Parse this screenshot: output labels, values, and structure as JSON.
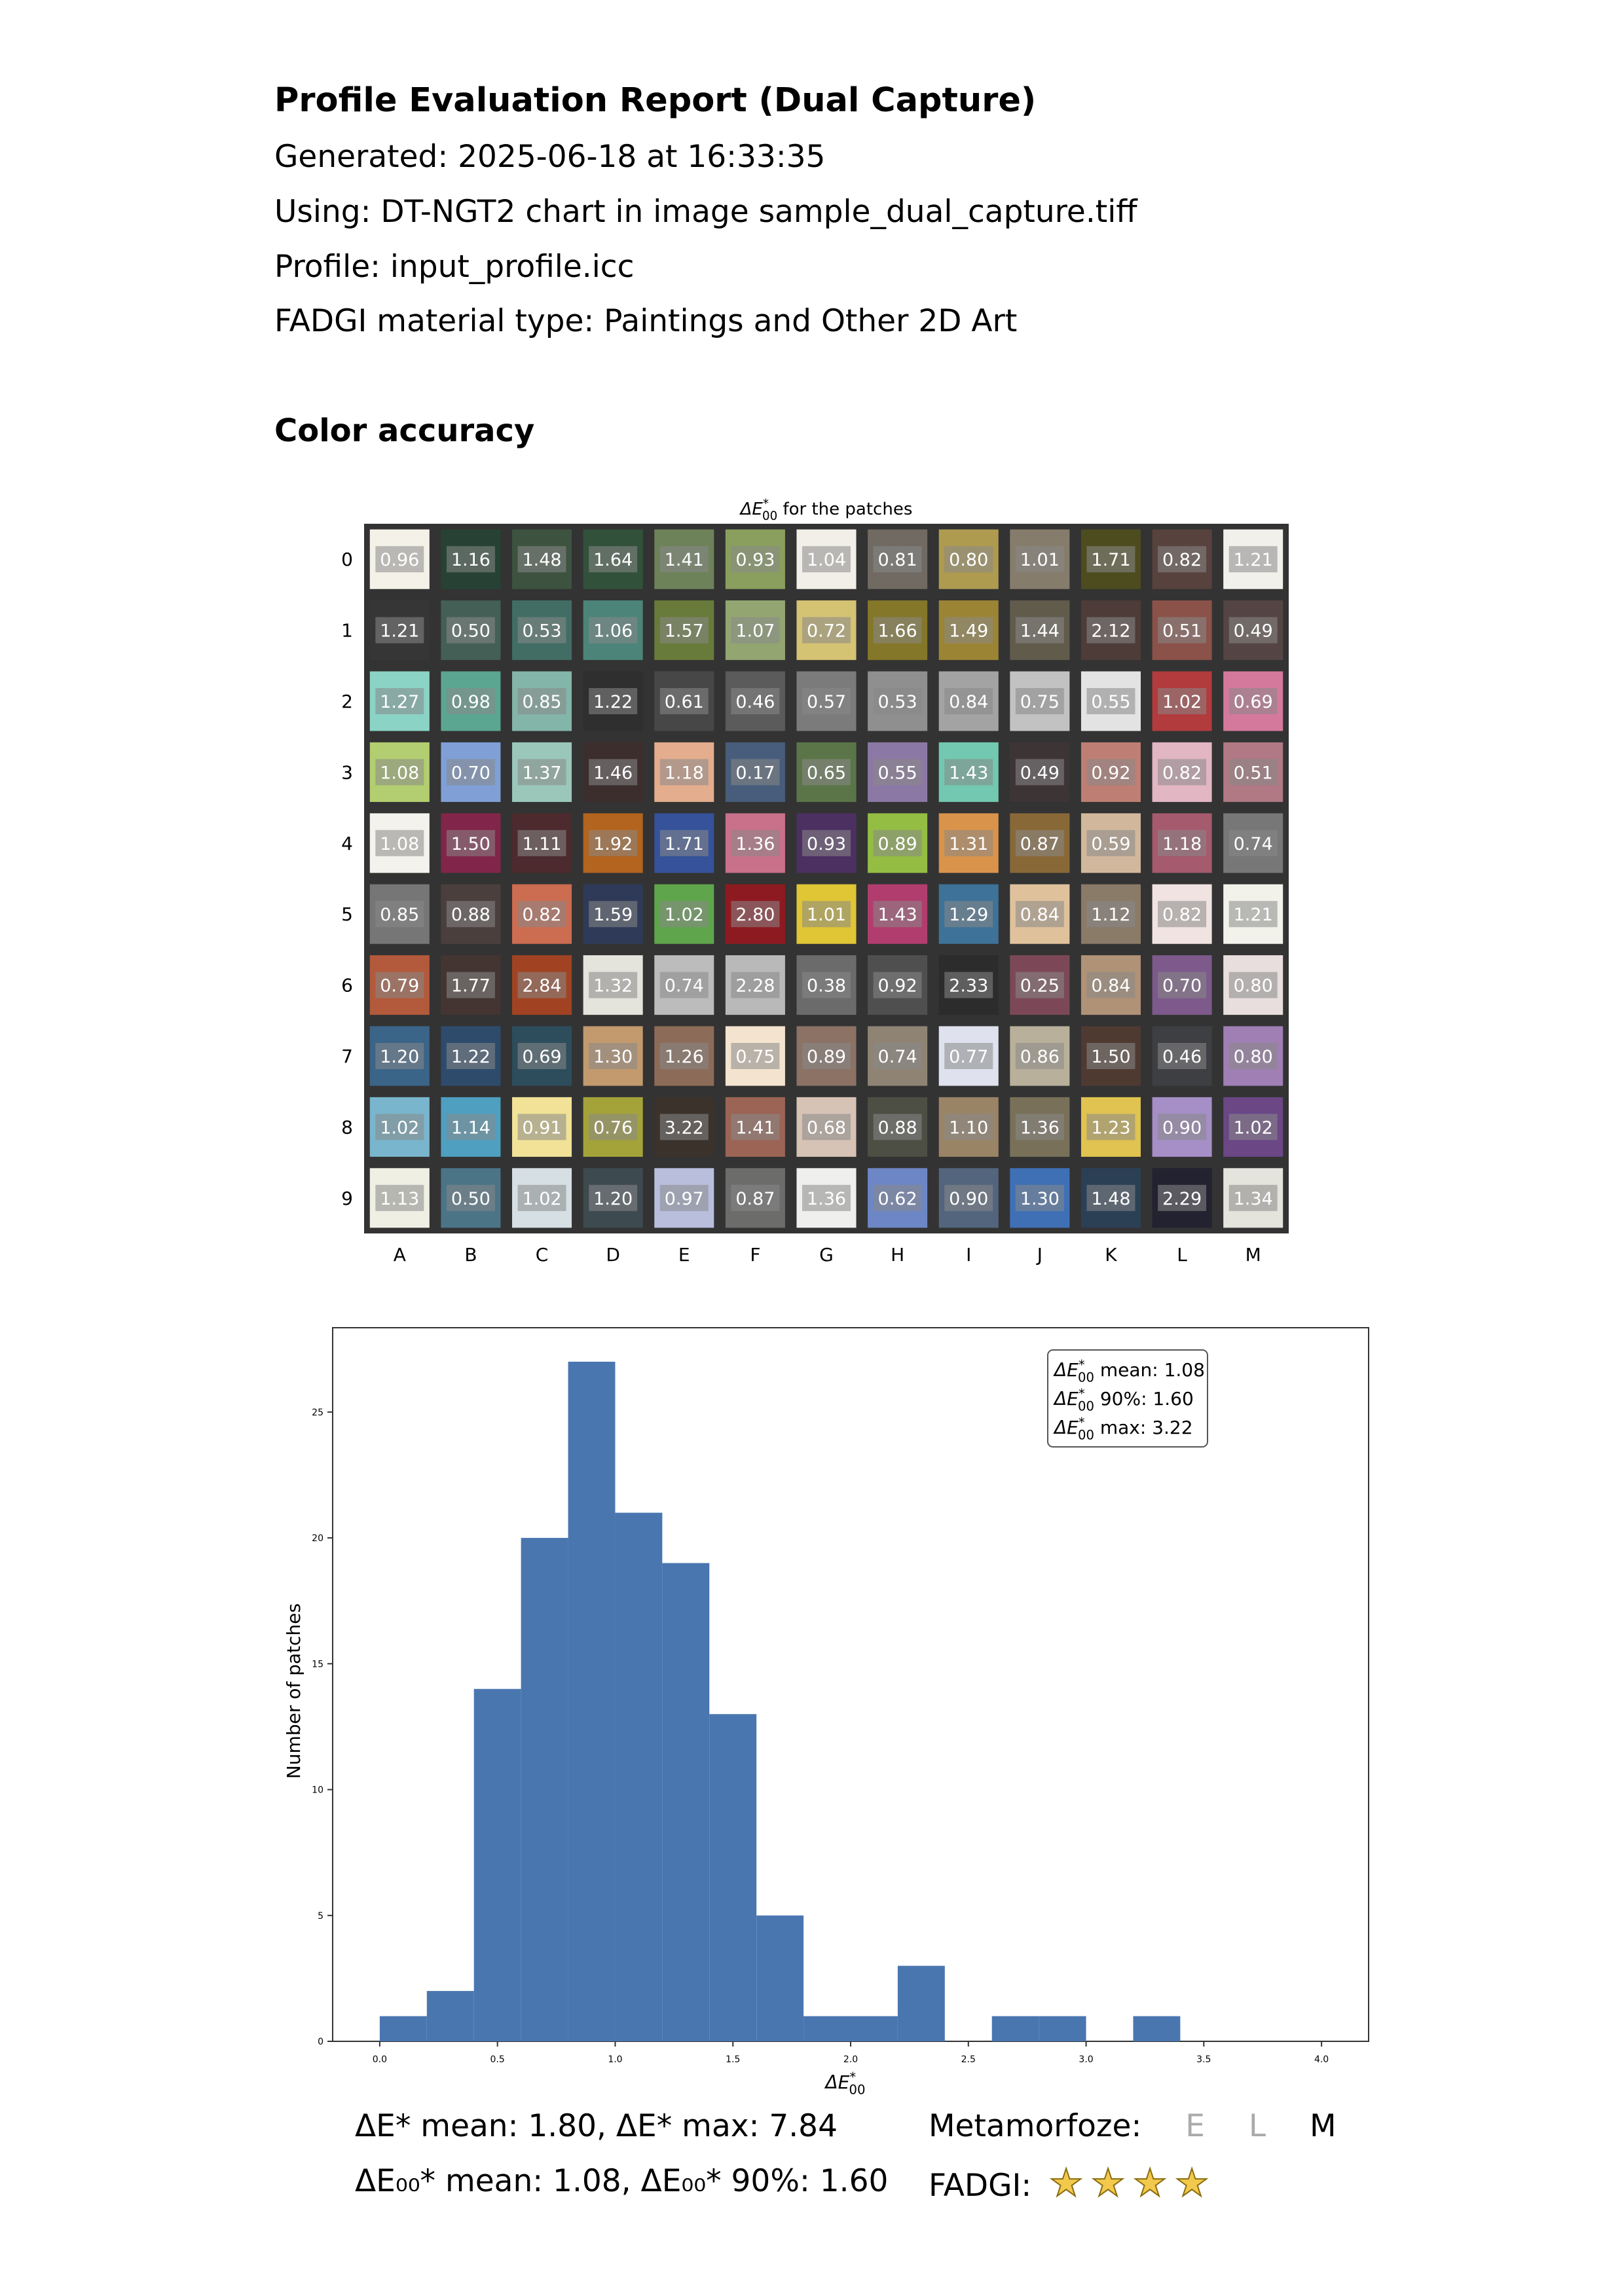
{
  "report": {
    "title": "Profile Evaluation Report (Dual Capture)",
    "generated": "Generated: 2025-06-18 at 16:33:35",
    "using": "Using: DT-NGT2 chart in image sample_dual_capture.tiff",
    "profile": "Profile: input_profile.icc",
    "material": "FADGI material type: Paintings and Other 2D Art",
    "section_color": "Color accuracy"
  },
  "chart_data": [
    {
      "type": "heatmap",
      "title_prefix": "ΔE",
      "title_sub": "00",
      "title_sup": "*",
      "title_suffix": " for the patches",
      "columns": [
        "A",
        "B",
        "C",
        "D",
        "E",
        "F",
        "G",
        "H",
        "I",
        "J",
        "K",
        "L",
        "M"
      ],
      "rows": [
        "0",
        "1",
        "2",
        "3",
        "4",
        "5",
        "6",
        "7",
        "8",
        "9"
      ],
      "values": [
        [
          0.96,
          1.16,
          1.48,
          1.64,
          1.41,
          0.93,
          1.04,
          0.81,
          0.8,
          1.01,
          1.71,
          0.82,
          1.21
        ],
        [
          1.21,
          0.5,
          0.53,
          1.06,
          1.57,
          1.07,
          0.72,
          1.66,
          1.49,
          1.44,
          2.12,
          0.51,
          0.49
        ],
        [
          1.27,
          0.98,
          0.85,
          1.22,
          0.61,
          0.46,
          0.57,
          0.53,
          0.84,
          0.75,
          0.55,
          1.02,
          0.69
        ],
        [
          1.08,
          0.7,
          1.37,
          1.46,
          1.18,
          0.17,
          0.65,
          0.55,
          1.43,
          0.49,
          0.92,
          0.82,
          0.51
        ],
        [
          1.08,
          1.5,
          1.11,
          1.92,
          1.71,
          1.36,
          0.93,
          0.89,
          1.31,
          0.87,
          0.59,
          1.18,
          0.74
        ],
        [
          0.85,
          0.88,
          0.82,
          1.59,
          1.02,
          2.8,
          1.01,
          1.43,
          1.29,
          0.84,
          1.12,
          0.82,
          1.21
        ],
        [
          0.79,
          1.77,
          2.84,
          1.32,
          0.74,
          2.28,
          0.38,
          0.92,
          2.33,
          0.25,
          0.84,
          0.7,
          0.8
        ],
        [
          1.2,
          1.22,
          0.69,
          1.3,
          1.26,
          0.75,
          0.89,
          0.74,
          0.77,
          0.86,
          1.5,
          0.46,
          0.8
        ],
        [
          1.02,
          1.14,
          0.91,
          0.76,
          3.22,
          1.41,
          0.68,
          0.88,
          1.1,
          1.36,
          1.23,
          0.9,
          1.02
        ],
        [
          1.13,
          0.5,
          1.02,
          1.2,
          0.97,
          0.87,
          1.36,
          0.62,
          0.9,
          1.3,
          1.48,
          2.29,
          1.34
        ]
      ],
      "patch_colors": [
        [
          "#f3f1e8",
          "#274234",
          "#3d5340",
          "#31513b",
          "#6e8259",
          "#8a9f5d",
          "#f1efe8",
          "#706a63",
          "#ae9b50",
          "#857c6b",
          "#4c4c1f",
          "#58423d",
          "#f1f0ea"
        ],
        [
          "#363636",
          "#445f56",
          "#416d64",
          "#4c8479",
          "#687b3a",
          "#93a672",
          "#d5c374",
          "#847729",
          "#9b8535",
          "#615b4c",
          "#4d3c38",
          "#8b5249",
          "#544544"
        ],
        [
          "#8bd3c5",
          "#5ba690",
          "#83b5a8",
          "#2f2f2f",
          "#474747",
          "#5b5b5b",
          "#7b7b7b",
          "#8f8f8f",
          "#a3a3a3",
          "#c2c2c2",
          "#e3e3e3",
          "#b23b3d",
          "#d5799c"
        ],
        [
          "#b3ce70",
          "#7f9fd6",
          "#9bc7bb",
          "#3d2e2e",
          "#e4ad8e",
          "#475d7b",
          "#5b7548",
          "#8c78a4",
          "#72c8b0",
          "#3d3435",
          "#be7e73",
          "#e2b6c3",
          "#b07983"
        ],
        [
          "#f3f2ec",
          "#82254a",
          "#4c2a2d",
          "#b3641e",
          "#35529a",
          "#c9708a",
          "#4c3062",
          "#94bd44",
          "#d9934a",
          "#896838",
          "#d1b89c",
          "#a55a6d",
          "#777777"
        ],
        [
          "#767676",
          "#4b3f3d",
          "#cc6c50",
          "#2f3a58",
          "#5fa54c",
          "#8e1a21",
          "#e0c534",
          "#b13d6e",
          "#3e7298",
          "#dfc29c",
          "#8a7a68",
          "#f0e3e1",
          "#f2f1ea"
        ],
        [
          "#b25a3b",
          "#443532",
          "#a14323",
          "#e4e3dc",
          "#bcbcbc",
          "#b9b9b9",
          "#6b6b6b",
          "#4f4f4f",
          "#2c2c2c",
          "#7c4857",
          "#b09277",
          "#7d5a8b",
          "#e8dedd"
        ],
        [
          "#3b6489",
          "#2e4b6c",
          "#2d4d5c",
          "#c29a6e",
          "#8c6c58",
          "#f4e4cf",
          "#8b7265",
          "#8f8474",
          "#dfe2ee",
          "#b8b09a",
          "#4f3a31",
          "#3e3f43",
          "#9f7fb4"
        ],
        [
          "#79b5cd",
          "#4f9fc0",
          "#f1e297",
          "#a4a33a",
          "#3b322c",
          "#9c6455",
          "#d7c3b5",
          "#4d4e44",
          "#9a8466",
          "#787059",
          "#e0c350",
          "#a58fc6",
          "#6b4786"
        ],
        [
          "#f0efe4",
          "#4b7487",
          "#d6e0e4",
          "#3d4a50",
          "#b9bedd",
          "#6c6c6a",
          "#efefee",
          "#6d86c5",
          "#53657d",
          "#3f70b6",
          "#2b3f55",
          "#222230",
          "#e4e3dc"
        ]
      ]
    },
    {
      "type": "bar",
      "xlabel_main": "ΔE",
      "xlabel_sub": "00",
      "xlabel_sup": "*",
      "ylabel": "Number of patches",
      "bin_edges": [
        0.0,
        0.2,
        0.4,
        0.6,
        0.8,
        1.0,
        1.2,
        1.4,
        1.6,
        1.8,
        2.0,
        2.2,
        2.4,
        2.6,
        2.8,
        3.0,
        3.2,
        3.4
      ],
      "counts": [
        1,
        2,
        14,
        20,
        27,
        21,
        19,
        13,
        5,
        1,
        1,
        3,
        0,
        1,
        1,
        0,
        1
      ],
      "xlim": [
        -0.2,
        4.2
      ],
      "ylim": [
        0,
        28.35
      ],
      "xticks": [
        "0.0",
        "0.5",
        "1.0",
        "1.5",
        "2.0",
        "2.5",
        "3.0",
        "3.5",
        "4.0"
      ],
      "yticks": [
        "0",
        "5",
        "10",
        "15",
        "20",
        "25"
      ],
      "bar_color": "#4a76b0",
      "legend_placement": "top-right",
      "stats": [
        {
          "label": "ΔE",
          "sub": "00",
          "sup": "*",
          "text": " mean: 1.08"
        },
        {
          "label": "ΔE",
          "sub": "00",
          "sup": "*",
          "text": " 90%: 1.60"
        },
        {
          "label": "ΔE",
          "sub": "00",
          "sup": "*",
          "text": " max: 3.22"
        }
      ]
    }
  ],
  "summary": {
    "de_line": "ΔE* mean: 1.80, ΔE* max: 7.84",
    "de00_line": "ΔE₀₀* mean: 1.08, ΔE₀₀* 90%: 1.60",
    "metamorfoze_label": "Metamorfoze:",
    "grade_e": "E",
    "grade_l": "L",
    "grade_m": "M",
    "fadgi_label": "FADGI:",
    "fadgi_stars": 4,
    "star_color": "#f2c94c"
  }
}
